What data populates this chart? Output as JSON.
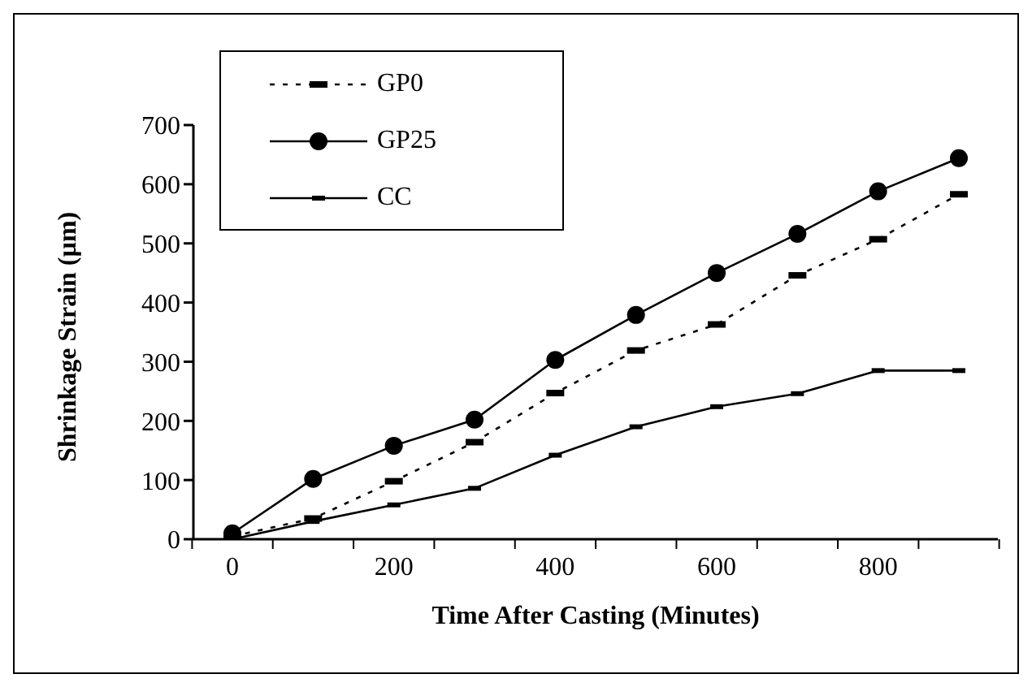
{
  "chart_data": {
    "type": "line",
    "xlabel": "Time After Casting (Minutes)",
    "ylabel": "Shrinkage Strain (µm)",
    "categories": [
      "0",
      null,
      "200",
      null,
      "400",
      null,
      "600",
      null,
      "800",
      null
    ],
    "series": [
      {
        "name": "GP0",
        "color": "#000000",
        "line_style": "dotted",
        "marker": "square",
        "values": [
          5,
          35,
          98,
          164,
          247,
          319,
          363,
          446,
          507,
          583
        ]
      },
      {
        "name": "GP25",
        "color": "#000000",
        "line_style": "solid",
        "marker": "circle",
        "values": [
          10,
          102,
          158,
          202,
          303,
          379,
          450,
          516,
          588,
          644
        ]
      },
      {
        "name": "CC",
        "color": "#000000",
        "line_style": "solid",
        "marker": "square",
        "values": [
          0,
          30,
          58,
          86,
          142,
          190,
          224,
          246,
          285,
          285
        ]
      }
    ],
    "ylim": [
      0,
      700
    ],
    "yticks": [
      0,
      100,
      200,
      300,
      400,
      500,
      600,
      700
    ],
    "grid": false,
    "legend": "top left"
  }
}
